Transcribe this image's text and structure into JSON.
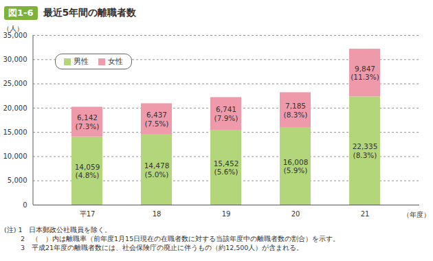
{
  "chart_data": {
    "type": "bar",
    "stacked": true,
    "figure_label": "図1-6",
    "title": "最近5年間の離職者数",
    "y_label": "（人）",
    "x_label": "（年度）",
    "categories": [
      "平17",
      "18",
      "19",
      "20",
      "21"
    ],
    "series": [
      {
        "name": "男性",
        "color": "#b3d67a",
        "values": [
          14059,
          14478,
          15452,
          16008,
          22335
        ],
        "value_labels": [
          "14,059\n(4.8%)",
          "14,478\n(5.0%)",
          "15,452\n(5.6%)",
          "16,008\n(5.9%)",
          "22,335\n(8.3%)"
        ]
      },
      {
        "name": "女性",
        "color": "#ee9aab",
        "values": [
          6142,
          6437,
          6741,
          7185,
          9847
        ],
        "value_labels": [
          "6,142\n(7.3%)",
          "6,437\n(7.5%)",
          "6,741\n(7.9%)",
          "7,185\n(8.3%)",
          "9,847\n(11.3%)"
        ]
      }
    ],
    "ylim": [
      0,
      35000
    ],
    "yticks": [
      0,
      {
        "value": 5000,
        "label": "5,000"
      },
      {
        "value": 10000,
        "label": "10,000"
      },
      {
        "value": 15000,
        "label": "15,000"
      },
      {
        "value": 20000,
        "label": "20,000"
      },
      {
        "value": 25000,
        "label": "25,000"
      },
      {
        "value": 30000,
        "label": "30,000"
      },
      {
        "value": 35000,
        "label": "35,000"
      }
    ],
    "grid": true,
    "legend": "top-left",
    "data_labels": true,
    "notes": [
      "(注) 1　日本郵政公社職員を除く。",
      "2　（　）内は離職率（前年度1月15日現在の在職者数に対する当該年度中の離職者数の割合）を示す。",
      "3　平成21年度の離職者数には、社会保険庁の廃止に伴うもの（約12,500人）が含まれる。"
    ]
  }
}
